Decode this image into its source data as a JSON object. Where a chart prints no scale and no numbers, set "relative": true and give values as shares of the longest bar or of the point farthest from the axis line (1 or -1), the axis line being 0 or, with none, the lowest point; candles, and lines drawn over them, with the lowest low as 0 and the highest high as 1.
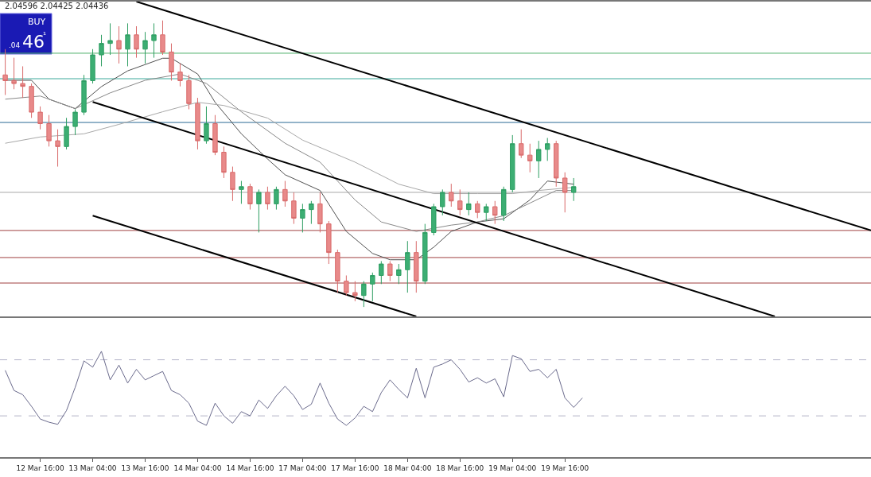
{
  "chart_data": [
    {
      "type": "candlestick",
      "relative": true,
      "annotations": [
        "2.04596 2.04425 2.04436",
        "BUY",
        ".04",
        "46",
        "¹"
      ],
      "categories": [
        null,
        null,
        null,
        null,
        null,
        null,
        null,
        null,
        null,
        null,
        null,
        null,
        null,
        null,
        null,
        null,
        null,
        null,
        null,
        null,
        null,
        null,
        null,
        null,
        null,
        null,
        null,
        null,
        null,
        null,
        null,
        null,
        null,
        null,
        null,
        null,
        null,
        null,
        null,
        null,
        null,
        null,
        null,
        null,
        null,
        null,
        null,
        null,
        null,
        null,
        null,
        null,
        null,
        null,
        null,
        null,
        null,
        null,
        null,
        null,
        null,
        null,
        null,
        null,
        null,
        null,
        null,
        null,
        null,
        null,
        null,
        null,
        null,
        null,
        null,
        null,
        null,
        null,
        null,
        null,
        null,
        null,
        null,
        null,
        null,
        null,
        null,
        null,
        null,
        null,
        null,
        null,
        null,
        null,
        null,
        null,
        null,
        null,
        null,
        null
      ],
      "ohlc": [
        [
          0.81,
          0.9,
          0.74,
          0.79
        ],
        [
          0.79,
          0.87,
          0.76,
          0.78
        ],
        [
          0.78,
          0.84,
          0.73,
          0.77
        ],
        [
          0.77,
          0.78,
          0.66,
          0.68
        ],
        [
          0.68,
          0.7,
          0.62,
          0.64
        ],
        [
          0.64,
          0.67,
          0.56,
          0.58
        ],
        [
          0.58,
          0.62,
          0.49,
          0.56
        ],
        [
          0.56,
          0.66,
          0.55,
          0.63
        ],
        [
          0.63,
          0.69,
          0.6,
          0.68
        ],
        [
          0.68,
          0.81,
          0.67,
          0.79
        ],
        [
          0.79,
          0.9,
          0.78,
          0.88
        ],
        [
          0.88,
          0.95,
          0.84,
          0.92
        ],
        [
          0.92,
          0.99,
          0.88,
          0.93
        ],
        [
          0.93,
          0.98,
          0.85,
          0.9
        ],
        [
          0.9,
          0.99,
          0.84,
          0.95
        ],
        [
          0.95,
          0.98,
          0.87,
          0.9
        ],
        [
          0.9,
          0.96,
          0.85,
          0.93
        ],
        [
          0.93,
          0.99,
          0.87,
          0.95
        ],
        [
          0.95,
          1.0,
          0.88,
          0.89
        ],
        [
          0.89,
          0.92,
          0.79,
          0.82
        ],
        [
          0.82,
          0.85,
          0.77,
          0.79
        ],
        [
          0.79,
          0.81,
          0.69,
          0.71
        ],
        [
          0.71,
          0.73,
          0.55,
          0.58
        ],
        [
          0.58,
          0.7,
          0.57,
          0.64
        ],
        [
          0.64,
          0.67,
          0.53,
          0.54
        ],
        [
          0.54,
          0.56,
          0.45,
          0.47
        ],
        [
          0.47,
          0.49,
          0.37,
          0.41
        ],
        [
          0.41,
          0.44,
          0.36,
          0.42
        ],
        [
          0.42,
          0.43,
          0.34,
          0.36
        ],
        [
          0.36,
          0.41,
          0.26,
          0.4
        ],
        [
          0.4,
          0.42,
          0.34,
          0.36
        ],
        [
          0.36,
          0.42,
          0.34,
          0.41
        ],
        [
          0.41,
          0.44,
          0.35,
          0.37
        ],
        [
          0.37,
          0.4,
          0.29,
          0.31
        ],
        [
          0.31,
          0.36,
          0.26,
          0.34
        ],
        [
          0.34,
          0.37,
          0.29,
          0.36
        ],
        [
          0.36,
          0.4,
          0.26,
          0.29
        ],
        [
          0.29,
          0.3,
          0.15,
          0.19
        ],
        [
          0.19,
          0.2,
          0.05,
          0.09
        ],
        [
          0.09,
          0.11,
          0.04,
          0.05
        ],
        [
          0.05,
          0.09,
          0.02,
          0.04
        ],
        [
          0.04,
          0.09,
          0.0,
          0.08
        ],
        [
          0.08,
          0.12,
          0.02,
          0.11
        ],
        [
          0.11,
          0.16,
          0.08,
          0.15
        ],
        [
          0.15,
          0.16,
          0.09,
          0.11
        ],
        [
          0.11,
          0.15,
          0.08,
          0.13
        ],
        [
          0.13,
          0.23,
          0.05,
          0.19
        ],
        [
          0.19,
          0.23,
          0.05,
          0.09
        ],
        [
          0.09,
          0.29,
          0.08,
          0.26
        ],
        [
          0.26,
          0.36,
          0.25,
          0.35
        ],
        [
          0.35,
          0.41,
          0.32,
          0.4
        ],
        [
          0.4,
          0.43,
          0.35,
          0.37
        ],
        [
          0.37,
          0.41,
          0.32,
          0.34
        ],
        [
          0.34,
          0.4,
          0.32,
          0.36
        ],
        [
          0.36,
          0.37,
          0.31,
          0.33
        ],
        [
          0.33,
          0.36,
          0.3,
          0.35
        ],
        [
          0.35,
          0.37,
          0.29,
          0.32
        ],
        [
          0.32,
          0.42,
          0.3,
          0.41
        ],
        [
          0.41,
          0.6,
          0.4,
          0.57
        ],
        [
          0.57,
          0.62,
          0.52,
          0.53
        ],
        [
          0.53,
          0.57,
          0.47,
          0.51
        ],
        [
          0.51,
          0.58,
          0.45,
          0.55
        ],
        [
          0.55,
          0.59,
          0.51,
          0.57
        ],
        [
          0.57,
          0.58,
          0.42,
          0.45
        ],
        [
          0.45,
          0.47,
          0.33,
          0.4
        ],
        [
          0.4,
          0.45,
          0.37,
          0.42
        ],
        null,
        null,
        null,
        null,
        null,
        null,
        null,
        null,
        null,
        null,
        null,
        null,
        null,
        null,
        null,
        null,
        null,
        null,
        null,
        null,
        null,
        null,
        null,
        null,
        null,
        null,
        null,
        null,
        null,
        null,
        null,
        null,
        null,
        null
      ]
    },
    {
      "type": "line",
      "relative": true,
      "categories": [
        null,
        null,
        null,
        null,
        null,
        null,
        null,
        null,
        null,
        null,
        null,
        null,
        null,
        null,
        null,
        null,
        null,
        null,
        null,
        null,
        null,
        null,
        null,
        null,
        null,
        null,
        null,
        null,
        null,
        null,
        null,
        null,
        null,
        null,
        null,
        null,
        null,
        null,
        null,
        null,
        null,
        null,
        null,
        null,
        null,
        null,
        null,
        null,
        null,
        null,
        null,
        null,
        null,
        null,
        null,
        null,
        null,
        null,
        null,
        null,
        null,
        null,
        null,
        null,
        null,
        null,
        null,
        null,
        null,
        null,
        null,
        null,
        null,
        null,
        null,
        null,
        null,
        null,
        null,
        null,
        null,
        null,
        null,
        null,
        null,
        null,
        null,
        null,
        null,
        null,
        null,
        null,
        null,
        null,
        null,
        null,
        null,
        null,
        null,
        null
      ],
      "series": [
        {
          "color": "#505050",
          "values": [
            0.75,
            null,
            null,
            0.75,
            null,
            0.69,
            null,
            null,
            0.66,
            null,
            null,
            0.73,
            null,
            null,
            0.78,
            null,
            null,
            null,
            0.82,
            0.82,
            null,
            null,
            0.77,
            null,
            0.68,
            null,
            null,
            0.58,
            null,
            null,
            0.5,
            null,
            0.45,
            null,
            null,
            null,
            0.4,
            null,
            null,
            0.27,
            null,
            null,
            0.2,
            null,
            0.18,
            null,
            null,
            0.18,
            null,
            0.22,
            null,
            0.27,
            null,
            null,
            0.3,
            null,
            null,
            0.31,
            null,
            null,
            0.37,
            null,
            0.43,
            null,
            null,
            0.42,
            null,
            null,
            null,
            null,
            null,
            null,
            null,
            null,
            null,
            null,
            null,
            null,
            null,
            null,
            null,
            null,
            null,
            null,
            null,
            null,
            null,
            null,
            null,
            null,
            null,
            null,
            null,
            null,
            null,
            null,
            null,
            null,
            null,
            null
          ]
        },
        {
          "color": "#888888",
          "values": [
            0.69,
            null,
            null,
            null,
            0.7,
            null,
            null,
            null,
            0.66,
            null,
            null,
            null,
            0.71,
            null,
            null,
            null,
            0.75,
            null,
            null,
            null,
            0.77,
            null,
            null,
            0.74,
            null,
            null,
            null,
            0.65,
            null,
            null,
            null,
            null,
            0.55,
            null,
            null,
            null,
            0.49,
            null,
            null,
            null,
            0.37,
            null,
            null,
            0.3,
            null,
            null,
            null,
            0.27,
            null,
            null,
            null,
            0.29,
            null,
            null,
            0.3,
            null,
            null,
            0.32,
            null,
            null,
            0.36,
            null,
            null,
            0.4,
            null,
            0.4,
            null,
            null,
            null,
            null,
            null,
            null,
            null,
            null,
            null,
            null,
            null,
            null,
            null,
            null,
            null,
            null,
            null,
            null,
            null,
            null,
            null,
            null,
            null,
            null,
            null,
            null,
            null,
            null,
            null,
            null,
            null,
            null,
            null,
            null
          ]
        },
        {
          "color": "#a8a8a8",
          "values": [
            0.55,
            null,
            null,
            null,
            0.57,
            null,
            null,
            null,
            null,
            0.58,
            null,
            null,
            null,
            0.61,
            null,
            null,
            null,
            null,
            0.65,
            null,
            null,
            null,
            0.68,
            null,
            null,
            0.67,
            null,
            null,
            null,
            null,
            0.63,
            null,
            null,
            null,
            0.56,
            null,
            null,
            null,
            null,
            null,
            0.49,
            null,
            null,
            null,
            null,
            0.42,
            null,
            null,
            null,
            0.39,
            null,
            null,
            null,
            null,
            0.39,
            null,
            null,
            null,
            0.39,
            null,
            null,
            0.4,
            null,
            null,
            null,
            0.41,
            null,
            null,
            null,
            null,
            null,
            null,
            null,
            null,
            null,
            null,
            null,
            null,
            null,
            null,
            null,
            null,
            null,
            null,
            null,
            null,
            null,
            null,
            null,
            null,
            null,
            null,
            null,
            null,
            null,
            null,
            null,
            null,
            null,
            null
          ]
        },
        {
          "color": "#000000",
          "values": [
            null,
            null,
            null,
            null,
            null,
            null,
            null,
            null,
            null,
            null,
            null,
            null,
            null,
            null,
            null,
            1.0,
            null,
            null,
            null,
            null,
            null,
            null,
            null,
            null,
            null,
            null,
            null,
            null,
            null,
            null,
            null,
            null,
            null,
            null,
            null,
            null,
            null,
            null,
            null,
            null,
            null,
            null,
            null,
            null,
            null,
            null,
            null,
            null,
            null,
            null,
            null,
            null,
            null,
            null,
            null,
            null,
            null,
            null,
            null,
            null,
            null,
            null,
            null,
            null,
            null,
            null,
            null,
            null,
            null,
            null,
            null,
            null,
            null,
            null,
            null,
            null,
            null,
            null,
            null,
            null,
            null,
            null,
            null,
            null,
            null,
            null,
            null,
            null,
            null,
            null,
            null,
            null,
            null,
            null,
            null,
            null,
            null,
            null,
            null,
            0.273
          ]
        },
        {
          "color": "#000000",
          "values": [
            null,
            null,
            null,
            null,
            null,
            null,
            null,
            null,
            null,
            null,
            0.681,
            null,
            null,
            null,
            null,
            null,
            null,
            null,
            null,
            null,
            null,
            null,
            null,
            null,
            null,
            null,
            null,
            null,
            null,
            null,
            null,
            null,
            null,
            null,
            null,
            null,
            null,
            null,
            null,
            null,
            null,
            null,
            null,
            null,
            null,
            null,
            null,
            null,
            null,
            null,
            null,
            null,
            null,
            null,
            null,
            null,
            null,
            null,
            null,
            null,
            null,
            null,
            null,
            null,
            null,
            null,
            null,
            null,
            null,
            null,
            null,
            null,
            null,
            null,
            null,
            null,
            null,
            null,
            null,
            null,
            null,
            null,
            null,
            null,
            null,
            null,
            null,
            null,
            0.0,
            null,
            null,
            null,
            null,
            null,
            null,
            null,
            null,
            null,
            null,
            null
          ]
        },
        {
          "color": "#000000",
          "values": [
            null,
            null,
            null,
            null,
            null,
            null,
            null,
            null,
            null,
            null,
            0.32,
            null,
            null,
            null,
            null,
            null,
            null,
            null,
            null,
            null,
            null,
            null,
            null,
            null,
            null,
            null,
            null,
            null,
            null,
            null,
            null,
            null,
            null,
            null,
            null,
            null,
            null,
            null,
            null,
            null,
            null,
            null,
            null,
            null,
            null,
            null,
            null,
            0.0,
            null,
            null,
            null,
            null,
            null,
            null,
            null,
            null,
            null,
            null,
            null,
            null,
            null,
            null,
            null,
            null,
            null,
            null,
            null,
            null,
            null,
            null,
            null,
            null,
            null,
            null,
            null,
            null,
            null,
            null,
            null,
            null,
            null,
            null,
            null,
            null,
            null,
            null,
            null,
            null,
            null,
            null,
            null,
            null,
            null,
            null,
            null,
            null,
            null,
            null,
            null,
            null
          ]
        }
      ],
      "ref_lines": [
        {
          "axis": "y",
          "value": 0.836,
          "color": "#4caf6a"
        },
        {
          "axis": "y",
          "value": 0.755,
          "color": "#3aa89a"
        },
        {
          "axis": "y",
          "value": 0.616,
          "color": "#2a6a96"
        },
        {
          "axis": "y",
          "value": 0.394,
          "color": "#a8a8a8"
        },
        {
          "axis": "y",
          "value": 0.273,
          "color": "#a04040"
        },
        {
          "axis": "y",
          "value": 0.187,
          "color": "#a04040"
        },
        {
          "axis": "y",
          "value": 0.106,
          "color": "#a04040"
        }
      ]
    },
    {
      "type": "line",
      "relative": true,
      "tick_labels": "x",
      "categories": [
        null,
        null,
        null,
        null,
        "12 Mar 16:00",
        null,
        null,
        null,
        null,
        null,
        "13 Mar 04:00",
        null,
        null,
        null,
        null,
        null,
        "13 Mar 16:00",
        null,
        null,
        null,
        null,
        null,
        "14 Mar 04:00",
        null,
        null,
        null,
        null,
        null,
        "14 Mar 16:00",
        null,
        null,
        null,
        null,
        null,
        "17 Mar 04:00",
        null,
        null,
        null,
        null,
        null,
        "17 Mar 16:00",
        null,
        null,
        null,
        null,
        null,
        "18 Mar 04:00",
        null,
        null,
        null,
        null,
        null,
        "18 Mar 16:00",
        null,
        null,
        null,
        null,
        null,
        "19 Mar 04:00",
        null,
        null,
        null,
        null,
        null,
        "19 Mar 16:00",
        null,
        null,
        null,
        null,
        null,
        null,
        null,
        null,
        null,
        null,
        null,
        null,
        null,
        null,
        null,
        null,
        null,
        null,
        null,
        null,
        null,
        null,
        null,
        null,
        null,
        null,
        null,
        null,
        null,
        null,
        null,
        null,
        null,
        null,
        null
      ],
      "series": [
        {
          "color": "#6a6a8c",
          "values": [
            0.82,
            0.63,
            0.59,
            0.48,
            0.36,
            0.33,
            0.31,
            0.44,
            0.66,
            0.91,
            0.85,
            1.0,
            0.73,
            0.87,
            0.7,
            0.83,
            0.73,
            0.77,
            0.81,
            0.63,
            0.59,
            0.51,
            0.34,
            0.3,
            0.51,
            0.39,
            0.32,
            0.43,
            0.39,
            0.54,
            0.46,
            0.58,
            0.67,
            0.58,
            0.45,
            0.5,
            0.7,
            0.51,
            0.36,
            0.3,
            0.37,
            0.48,
            0.43,
            0.61,
            0.73,
            0.64,
            0.56,
            0.84,
            0.56,
            0.85,
            0.88,
            0.92,
            0.83,
            0.71,
            0.75,
            0.7,
            0.74,
            0.57,
            0.96,
            0.93,
            0.81,
            0.83,
            0.75,
            0.83,
            0.56,
            0.47,
            0.56,
            null,
            null,
            null,
            null,
            null,
            null,
            null,
            null,
            null,
            null,
            null,
            null,
            null,
            null,
            null,
            null,
            null,
            null,
            null,
            null,
            null,
            null,
            null,
            null,
            null,
            null,
            null,
            null,
            null,
            null,
            null,
            null,
            null
          ]
        }
      ],
      "ref_lines": [
        {
          "axis": "y",
          "value": 0.92,
          "color": "#b4b4c8",
          "line_style": "dashed"
        },
        {
          "axis": "y",
          "value": 0.39,
          "color": "#b4b4c8",
          "line_style": "dashed"
        }
      ]
    }
  ]
}
